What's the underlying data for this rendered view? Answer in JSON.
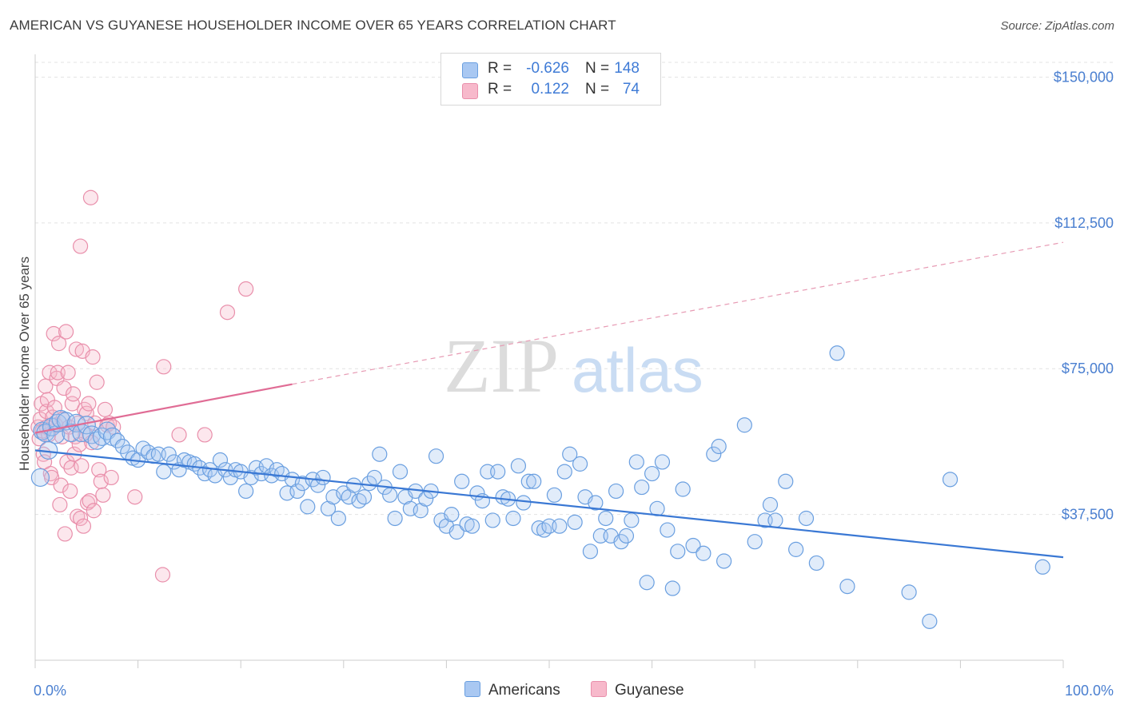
{
  "title": "AMERICAN VS GUYANESE HOUSEHOLDER INCOME OVER 65 YEARS CORRELATION CHART",
  "source": "Source: ZipAtlas.com",
  "watermark": {
    "zip": "ZIP",
    "atlas": "atlas"
  },
  "legend": {
    "r_label": "R =",
    "n_label": "N =",
    "items": [
      {
        "r": "-0.626",
        "n": "148",
        "fill": "#a9c8f2",
        "stroke": "#6a9fe0"
      },
      {
        "r": "0.122",
        "n": "74",
        "fill": "#f7b9cb",
        "stroke": "#e98fab"
      }
    ]
  },
  "bottom_legend": [
    {
      "label": "Americans",
      "fill": "#a9c8f2",
      "stroke": "#6a9fe0"
    },
    {
      "label": "Guyanese",
      "fill": "#f7b9cb",
      "stroke": "#e98fab"
    }
  ],
  "chart_data": {
    "type": "scatter",
    "title": "AMERICAN VS GUYANESE HOUSEHOLDER INCOME OVER 65 YEARS CORRELATION CHART",
    "xlabel": "",
    "ylabel": "Householder Income Over 65 years",
    "xlim": [
      0,
      100
    ],
    "ylim": [
      0,
      157500
    ],
    "x_tick_labels": [
      "0.0%",
      "100.0%"
    ],
    "y_ticks": [
      37500,
      75000,
      112500,
      150000
    ],
    "y_tick_labels": [
      "$37,500",
      "$75,000",
      "$112,500",
      "$150,000"
    ],
    "grid": true,
    "legend_position": "top-center",
    "colors": {
      "americans": "#3a78d4",
      "guyanese": "#e06c95"
    },
    "series": [
      {
        "name": "Americans",
        "trend": {
          "x0": 0,
          "y0": 54000,
          "x1": 100,
          "y1": 26500
        },
        "points": [
          [
            0.5,
            47000
          ],
          [
            0.7,
            59000
          ],
          [
            1.0,
            58500
          ],
          [
            1.3,
            54000
          ],
          [
            1.6,
            60000
          ],
          [
            2.0,
            58000
          ],
          [
            2.2,
            61000
          ],
          [
            2.5,
            62000
          ],
          [
            3.0,
            61500
          ],
          [
            3.5,
            58500
          ],
          [
            4.0,
            61000
          ],
          [
            4.5,
            58500
          ],
          [
            5.0,
            60500
          ],
          [
            5.5,
            58000
          ],
          [
            6.0,
            56500
          ],
          [
            6.5,
            57500
          ],
          [
            7.0,
            59000
          ],
          [
            7.5,
            57500
          ],
          [
            8.0,
            56500
          ],
          [
            8.5,
            55000
          ],
          [
            9.0,
            53500
          ],
          [
            9.5,
            52000
          ],
          [
            10.0,
            51500
          ],
          [
            10.5,
            54500
          ],
          [
            11.0,
            53500
          ],
          [
            11.5,
            52500
          ],
          [
            12.0,
            53000
          ],
          [
            12.5,
            48500
          ],
          [
            13.0,
            53000
          ],
          [
            13.5,
            51000
          ],
          [
            14.0,
            49000
          ],
          [
            14.5,
            51500
          ],
          [
            15.0,
            51000
          ],
          [
            15.5,
            50500
          ],
          [
            16.0,
            49500
          ],
          [
            16.5,
            48000
          ],
          [
            17.0,
            49000
          ],
          [
            17.5,
            47500
          ],
          [
            18.0,
            51500
          ],
          [
            18.5,
            49000
          ],
          [
            19.0,
            47000
          ],
          [
            19.5,
            49000
          ],
          [
            20.0,
            48500
          ],
          [
            20.5,
            43500
          ],
          [
            21.0,
            47000
          ],
          [
            21.5,
            49500
          ],
          [
            22.0,
            48000
          ],
          [
            22.5,
            50000
          ],
          [
            23.0,
            47500
          ],
          [
            23.5,
            49000
          ],
          [
            24.0,
            48000
          ],
          [
            24.5,
            43000
          ],
          [
            25.0,
            46500
          ],
          [
            25.5,
            43500
          ],
          [
            26.0,
            45500
          ],
          [
            26.5,
            39500
          ],
          [
            27.0,
            46500
          ],
          [
            27.5,
            45000
          ],
          [
            28.0,
            47000
          ],
          [
            28.5,
            39000
          ],
          [
            29.0,
            42000
          ],
          [
            29.5,
            36500
          ],
          [
            30.0,
            43000
          ],
          [
            30.5,
            42000
          ],
          [
            31.0,
            45000
          ],
          [
            31.5,
            41000
          ],
          [
            32.0,
            42000
          ],
          [
            32.5,
            45500
          ],
          [
            33.0,
            47000
          ],
          [
            33.5,
            53000
          ],
          [
            34.0,
            44500
          ],
          [
            34.5,
            42500
          ],
          [
            35.0,
            36500
          ],
          [
            35.5,
            48500
          ],
          [
            36.0,
            42000
          ],
          [
            36.5,
            39000
          ],
          [
            37.0,
            43500
          ],
          [
            37.5,
            38500
          ],
          [
            38.0,
            41500
          ],
          [
            38.5,
            43500
          ],
          [
            39.0,
            52500
          ],
          [
            39.5,
            36000
          ],
          [
            40.0,
            34500
          ],
          [
            40.5,
            37500
          ],
          [
            41.0,
            33000
          ],
          [
            41.5,
            46000
          ],
          [
            42.0,
            35000
          ],
          [
            42.5,
            34500
          ],
          [
            43.0,
            43000
          ],
          [
            43.5,
            41000
          ],
          [
            44.0,
            48500
          ],
          [
            44.5,
            36000
          ],
          [
            45.0,
            48500
          ],
          [
            45.5,
            42000
          ],
          [
            46.0,
            41500
          ],
          [
            46.5,
            36500
          ],
          [
            47.0,
            50000
          ],
          [
            47.5,
            40500
          ],
          [
            48.0,
            46000
          ],
          [
            48.5,
            46000
          ],
          [
            49.0,
            34000
          ],
          [
            49.5,
            33500
          ],
          [
            50.0,
            34500
          ],
          [
            50.5,
            42500
          ],
          [
            51.0,
            34500
          ],
          [
            51.5,
            48500
          ],
          [
            52.0,
            53000
          ],
          [
            52.5,
            35500
          ],
          [
            53.0,
            50500
          ],
          [
            53.5,
            42000
          ],
          [
            54.0,
            28000
          ],
          [
            54.5,
            40500
          ],
          [
            55.0,
            32000
          ],
          [
            55.5,
            36500
          ],
          [
            56.0,
            32000
          ],
          [
            56.5,
            43500
          ],
          [
            57.0,
            30500
          ],
          [
            57.5,
            32000
          ],
          [
            58.0,
            36000
          ],
          [
            58.5,
            51000
          ],
          [
            59.0,
            44500
          ],
          [
            59.5,
            20000
          ],
          [
            60.0,
            48000
          ],
          [
            60.5,
            39000
          ],
          [
            61.0,
            51000
          ],
          [
            61.5,
            33500
          ],
          [
            62.0,
            18500
          ],
          [
            62.5,
            28000
          ],
          [
            63.0,
            44000
          ],
          [
            64.0,
            29500
          ],
          [
            65.0,
            27500
          ],
          [
            66.0,
            53000
          ],
          [
            66.5,
            55000
          ],
          [
            67.0,
            25500
          ],
          [
            69.0,
            60500
          ],
          [
            70.0,
            30500
          ],
          [
            71.0,
            36000
          ],
          [
            71.5,
            40000
          ],
          [
            72.0,
            36000
          ],
          [
            73.0,
            46000
          ],
          [
            74.0,
            28500
          ],
          [
            75.0,
            36500
          ],
          [
            76.0,
            25000
          ],
          [
            78.0,
            79000
          ],
          [
            79.0,
            19000
          ],
          [
            85.0,
            17500
          ],
          [
            87.0,
            10000
          ],
          [
            89.0,
            46500
          ],
          [
            98.0,
            24000
          ]
        ],
        "sizes_note": "first cluster points near x<8% drawn slightly larger"
      },
      {
        "name": "Guyanese",
        "trend": {
          "x0": 0,
          "y0": 58500,
          "x1": 25,
          "y1": 71000,
          "dashed_to": {
            "x": 100,
            "y": 107500
          }
        },
        "points": [
          [
            0.3,
            60000
          ],
          [
            0.4,
            57000
          ],
          [
            0.5,
            62000
          ],
          [
            0.6,
            66000
          ],
          [
            0.7,
            59000
          ],
          [
            0.8,
            53000
          ],
          [
            0.9,
            51000
          ],
          [
            1.0,
            70500
          ],
          [
            1.1,
            64000
          ],
          [
            1.2,
            67000
          ],
          [
            1.3,
            58000
          ],
          [
            1.4,
            74000
          ],
          [
            1.5,
            48000
          ],
          [
            1.6,
            47000
          ],
          [
            1.7,
            62500
          ],
          [
            1.8,
            84000
          ],
          [
            1.9,
            65000
          ],
          [
            2.0,
            60500
          ],
          [
            2.1,
            72500
          ],
          [
            2.2,
            74000
          ],
          [
            2.3,
            81500
          ],
          [
            2.4,
            40000
          ],
          [
            2.5,
            45000
          ],
          [
            2.6,
            57500
          ],
          [
            2.7,
            62000
          ],
          [
            2.8,
            70000
          ],
          [
            2.9,
            32500
          ],
          [
            3.0,
            84500
          ],
          [
            3.1,
            51000
          ],
          [
            3.2,
            74000
          ],
          [
            3.3,
            60000
          ],
          [
            3.4,
            43500
          ],
          [
            3.5,
            49500
          ],
          [
            3.6,
            66000
          ],
          [
            3.7,
            68500
          ],
          [
            3.8,
            53000
          ],
          [
            3.9,
            57500
          ],
          [
            4.0,
            80000
          ],
          [
            4.1,
            37000
          ],
          [
            4.2,
            61000
          ],
          [
            4.3,
            55500
          ],
          [
            4.4,
            36500
          ],
          [
            4.5,
            50000
          ],
          [
            4.6,
            79500
          ],
          [
            4.7,
            34500
          ],
          [
            4.8,
            64500
          ],
          [
            4.9,
            58000
          ],
          [
            5.0,
            63500
          ],
          [
            5.1,
            40500
          ],
          [
            5.2,
            66000
          ],
          [
            5.3,
            41000
          ],
          [
            5.4,
            119000
          ],
          [
            5.5,
            56000
          ],
          [
            5.6,
            78000
          ],
          [
            5.7,
            38500
          ],
          [
            5.8,
            61000
          ],
          [
            6.0,
            71500
          ],
          [
            6.2,
            49000
          ],
          [
            6.4,
            46000
          ],
          [
            6.6,
            42500
          ],
          [
            6.8,
            64500
          ],
          [
            7.0,
            60500
          ],
          [
            7.2,
            61000
          ],
          [
            7.4,
            47000
          ],
          [
            7.6,
            60000
          ],
          [
            9.7,
            42000
          ],
          [
            12.5,
            75500
          ],
          [
            12.4,
            22000
          ],
          [
            14.0,
            58000
          ],
          [
            16.5,
            58000
          ],
          [
            18.7,
            89500
          ],
          [
            20.5,
            95500
          ],
          [
            4.4,
            106500
          ],
          [
            1.1,
            60000
          ]
        ]
      }
    ]
  }
}
